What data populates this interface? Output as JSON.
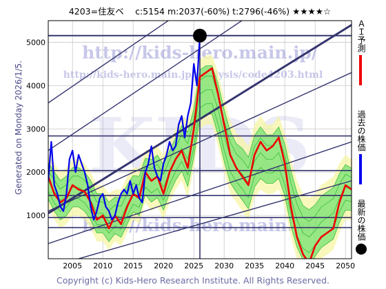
{
  "header": {
    "text": "4203=住友ベ　 c:5154  m:2037(-60%)  t:2796(-46%)  ★★★★☆"
  },
  "side_label": "Generated on Monday 2026/1/5.",
  "footer": "Copyright (c) Kids-Hero Research Institute. All Rights Reserved.",
  "watermark": {
    "url1": "http://kids-hero.main.jp/",
    "url2": "http://kids-hero.main.jp/analysis/code4203.html",
    "big": "KIDS",
    "url3": "http://kids-hero.main.jp/"
  },
  "legend": [
    {
      "label": "ＡＩ予測",
      "color": "#ee0000",
      "kind": "line"
    },
    {
      "label": "過去の株価",
      "color": "#0000ff",
      "kind": "line"
    },
    {
      "label": "最新の株価",
      "color": "#000000",
      "kind": "dot"
    }
  ],
  "colors": {
    "ai": "#ee0000",
    "past": "#0000ee",
    "band_green": "#6ee06e",
    "band_yellow": "#f5f5a0",
    "trend": "#34346e",
    "grid": "#c8c8c8"
  },
  "chart_data": {
    "type": "line",
    "xlim": [
      2001,
      2051
    ],
    "ylim": [
      0,
      5500
    ],
    "xticks": [
      2005,
      2010,
      2015,
      2020,
      2025,
      2030,
      2035,
      2040,
      2045,
      2050
    ],
    "yticks": [
      1000,
      2000,
      3000,
      4000,
      5000
    ],
    "latest": {
      "x": 2026.0,
      "y": 5154
    },
    "hlines": [
      5154,
      2837,
      2037,
      1460,
      950,
      720
    ],
    "trend_lines": [
      {
        "x": [
          2001,
          2051
        ],
        "y": [
          3600,
          8400
        ]
      },
      {
        "x": [
          2001,
          2051
        ],
        "y": [
          2500,
          7200
        ]
      },
      {
        "x": [
          2001,
          2051
        ],
        "y": [
          1100,
          4300
        ]
      },
      {
        "x": [
          2001,
          2051
        ],
        "y": [
          1050,
          5400
        ]
      },
      {
        "x": [
          2001,
          2051
        ],
        "y": [
          350,
          2700
        ]
      },
      {
        "x": [
          2001,
          2051
        ],
        "y": [
          -200,
          1800
        ]
      }
    ],
    "past_series": {
      "x": [
        2001,
        2001.5,
        2002,
        2002.5,
        2003,
        2003.5,
        2004,
        2004.5,
        2005,
        2005.5,
        2006,
        2006.5,
        2007,
        2007.5,
        2008,
        2008.5,
        2009,
        2009.5,
        2010,
        2010.5,
        2011,
        2011.5,
        2012,
        2012.5,
        2013,
        2013.5,
        2014,
        2014.5,
        2015,
        2015.5,
        2016,
        2016.5,
        2017,
        2017.5,
        2018,
        2018.5,
        2019,
        2019.5,
        2020,
        2020.5,
        2021,
        2021.5,
        2022,
        2022.5,
        2023,
        2023.5,
        2024,
        2024.5,
        2025,
        2025.5,
        2026
      ],
      "y": [
        1800,
        2700,
        1700,
        1500,
        1200,
        1100,
        1500,
        2300,
        2500,
        2000,
        2400,
        2200,
        2000,
        1700,
        1200,
        900,
        1100,
        1400,
        1500,
        1200,
        1100,
        900,
        1000,
        1300,
        1500,
        1600,
        1500,
        1800,
        1500,
        1700,
        1400,
        1300,
        2000,
        2200,
        2600,
        2100,
        1900,
        1800,
        2200,
        2400,
        2700,
        2500,
        2600,
        3100,
        3300,
        2800,
        3300,
        3600,
        4500,
        4000,
        5154
      ]
    },
    "ai_series": {
      "x": [
        2001,
        2002,
        2003,
        2004,
        2005,
        2006,
        2007,
        2008,
        2009,
        2010,
        2011,
        2012,
        2013,
        2014,
        2015,
        2016,
        2017,
        2018,
        2019,
        2020,
        2021,
        2022,
        2023,
        2024,
        2025,
        2026,
        2027,
        2028,
        2029,
        2030,
        2031,
        2032,
        2033,
        2034,
        2035,
        2036,
        2037,
        2038,
        2039,
        2040,
        2041,
        2042,
        2043,
        2044,
        2045,
        2046,
        2047,
        2048,
        2049,
        2050,
        2051
      ],
      "y": [
        1900,
        1500,
        1300,
        1400,
        1700,
        1600,
        1550,
        1300,
        900,
        1000,
        700,
        1000,
        800,
        1200,
        1500,
        1400,
        2000,
        1800,
        1900,
        1500,
        2000,
        2300,
        2500,
        2100,
        3000,
        4200,
        4300,
        4400,
        3800,
        3100,
        2400,
        2100,
        1900,
        1700,
        2400,
        2700,
        2500,
        2600,
        2800,
        2200,
        1200,
        500,
        100,
        -100,
        300,
        500,
        600,
        700,
        1300,
        1700,
        1600
      ]
    },
    "band_upper": [
      2400,
      2200,
      2000,
      2100,
      2300,
      2300,
      2200,
      2000,
      1700,
      1700,
      1500,
      1600,
      1600,
      1900,
      2100,
      2100,
      2500,
      2500,
      2600,
      2400,
      2700,
      3000,
      3300,
      3200,
      3700,
      4600,
      4700,
      4700,
      4300,
      3700,
      3200,
      2900,
      2800,
      2600,
      3100,
      3300,
      3100,
      3100,
      3300,
      2900,
      2300,
      1800,
      1500,
      1400,
      1500,
      1700,
      1800,
      1900,
      2200,
      2400,
      2300
    ],
    "band_lower": [
      1200,
      900,
      700,
      800,
      1000,
      1000,
      900,
      700,
      400,
      400,
      200,
      400,
      300,
      600,
      900,
      800,
      1300,
      1100,
      1200,
      900,
      1300,
      1600,
      1800,
      1400,
      2100,
      3000,
      3100,
      3100,
      2600,
      2000,
      1500,
      1300,
      1100,
      900,
      1400,
      1600,
      1500,
      1500,
      1600,
      1200,
      500,
      0,
      -300,
      -400,
      -200,
      0,
      100,
      200,
      600,
      900,
      900
    ]
  }
}
